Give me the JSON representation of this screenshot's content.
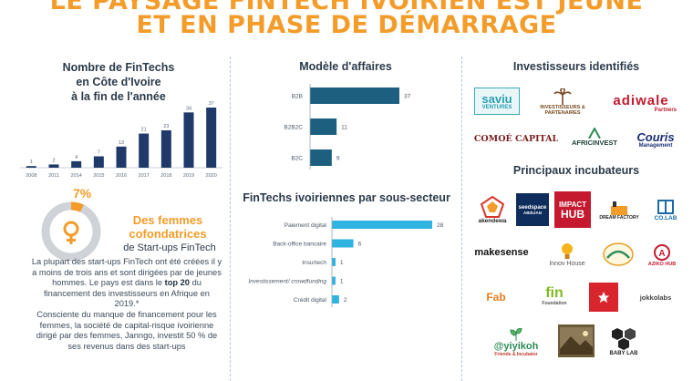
{
  "header": {
    "line1": "LE PAYSAGE FINTECH IVOIRIEN EST JEUNE",
    "line2": "ET EN PHASE DE DÉMARRAGE"
  },
  "left": {
    "title_lines": [
      "Nombre de FinTechs",
      "en Côte d'Ivoire",
      "à la fin de l'année"
    ],
    "chart_data": {
      "type": "bar",
      "categories": [
        "2008",
        "2011",
        "2014",
        "2015",
        "2016",
        "2017",
        "2018",
        "2019",
        "2020"
      ],
      "values": [
        1,
        2,
        4,
        7,
        13,
        21,
        23,
        34,
        37
      ],
      "color": "#1f3a68"
    },
    "stat": {
      "percent": "7%",
      "fraction": 0.07,
      "label_lines": [
        "Des femmes",
        "cofondatrices"
      ],
      "sub": "de Start-ups FinTech"
    },
    "paragraph": {
      "p1": "La plupart des start-ups FinTech ont été créées il y a moins de trois ans et sont dirigées par de jeunes hommes. Le pays est dans le",
      "p1_bold": "top 20",
      "p1_end": "du financement des investisseurs en Afrique en 2019.*",
      "p2": "Consciente du manque de financement pour les femmes, la société de capital-risque ivoirienne dirigé par des femmes, Janngo, investit 50 % de ses revenus dans des start-ups"
    }
  },
  "middle": {
    "business_model": {
      "title": "Modèle d'affaires",
      "chart_data": {
        "type": "bar",
        "orientation": "horizontal",
        "categories": [
          "B2B",
          "B2B2C",
          "B2C"
        ],
        "values": [
          37,
          11,
          9
        ],
        "color": "#1c5f7e"
      }
    },
    "subsector": {
      "title": "FinTechs ivoiriennes par sous-secteur",
      "chart_data": {
        "type": "bar",
        "orientation": "horizontal",
        "categories": [
          "Paiement digital",
          "Back-office bancaire",
          "Insurtech",
          "Investissement/ crowdfunding",
          "Crédit digital"
        ],
        "values": [
          28,
          6,
          1,
          1,
          2
        ],
        "color": "#2fb3e0"
      }
    }
  },
  "right": {
    "investors_title": "Investisseurs identifiés",
    "investors": [
      {
        "line1": "saviu",
        "line2": "VENTURES"
      },
      {
        "line1": "IP",
        "line2": "INVESTISSEURS & PARTENAIRES"
      },
      {
        "line1": "adiwale",
        "line2": "Partners"
      },
      {
        "line1": "COMOÉ CAPITAL",
        "line2": ""
      },
      {
        "line1": "AFRICINVEST",
        "line2": ""
      },
      {
        "line1": "Couris",
        "line2": "Management"
      }
    ],
    "incubators_title": "Principaux incubateurs",
    "incubators": [
      {
        "line1": "akendewa",
        "line2": ""
      },
      {
        "line1": "seedspace",
        "line2": "ABIDJAN"
      },
      {
        "line1": "IMPACT",
        "line2": "HUB"
      },
      {
        "line1": "DREAM FACTORY",
        "line2": ""
      },
      {
        "line1": "CO.",
        "line2": "CO.LAB"
      },
      {
        "line1": "makesense",
        "line2": ""
      },
      {
        "line1": "Innov House",
        "line2": ""
      },
      {
        "line1": "",
        "line2": ""
      },
      {
        "line1": "AZIKO HUB",
        "line2": ""
      },
      {
        "line1": "Fab",
        "line2": ""
      },
      {
        "line1": "fin",
        "line2": "Foundation"
      },
      {
        "line1": "",
        "line2": ""
      },
      {
        "line1": "jokkolabs",
        "line2": ""
      },
      {
        "line1": "@yiyikoh",
        "line2": "Friends & Incubator"
      },
      {
        "line1": "",
        "line2": ""
      },
      {
        "line1": "BABY LAB",
        "line2": ""
      }
    ]
  }
}
